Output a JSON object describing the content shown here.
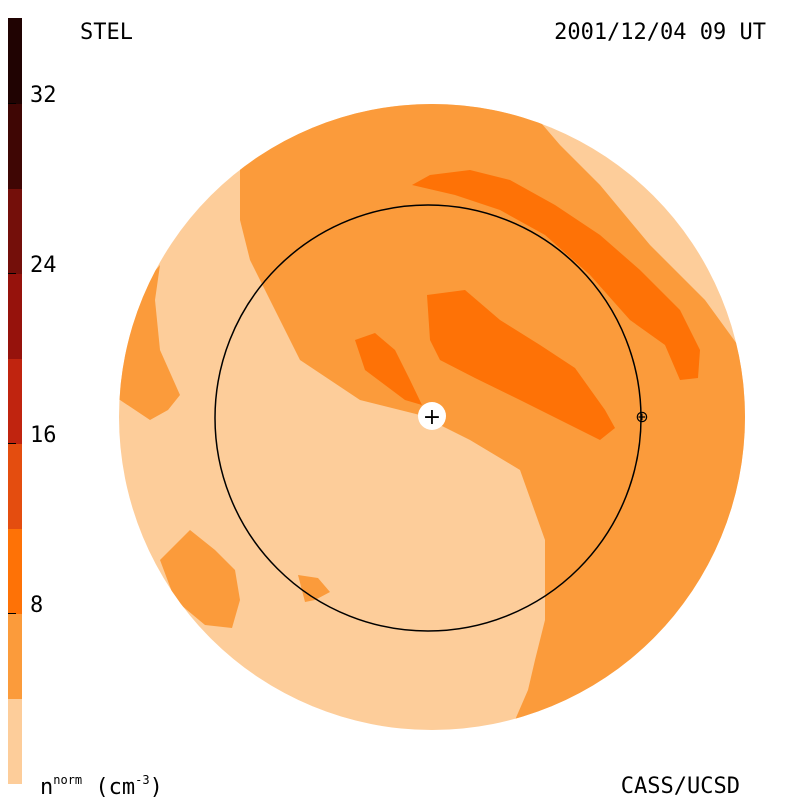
{
  "header": {
    "source": "STEL",
    "timestamp": "2001/12/04 09 UT"
  },
  "footer": {
    "credit": "CASS/UCSD",
    "units_base": "n",
    "units_super": "norm",
    "units_rest": " (cm",
    "units_exp": "-3",
    "units_close": ")"
  },
  "chart_data": {
    "type": "heatmap",
    "title": "",
    "colorbar": {
      "range": [
        0,
        36
      ],
      "ticks": [
        {
          "value": 8,
          "label": "8"
        },
        {
          "value": 16,
          "label": "16"
        },
        {
          "value": 24,
          "label": "24"
        },
        {
          "value": 32,
          "label": "32"
        }
      ],
      "levels": [
        {
          "from": 0,
          "to": 4,
          "color": "#fdcd9a"
        },
        {
          "from": 4,
          "to": 8,
          "color": "#fb9b3b"
        },
        {
          "from": 8,
          "to": 12,
          "color": "#fe7206"
        },
        {
          "from": 12,
          "to": 16,
          "color": "#e44d0f"
        },
        {
          "from": 16,
          "to": 20,
          "color": "#c0240f"
        },
        {
          "from": 20,
          "to": 24,
          "color": "#96120c"
        },
        {
          "from": 24,
          "to": 28,
          "color": "#740f0a"
        },
        {
          "from": 28,
          "to": 32,
          "color": "#3f0604"
        },
        {
          "from": 32,
          "to": 36,
          "color": "#200302"
        }
      ]
    },
    "markers": [
      {
        "name": "sun",
        "symbol": "+"
      },
      {
        "name": "earth",
        "symbol": "⊕"
      }
    ]
  }
}
